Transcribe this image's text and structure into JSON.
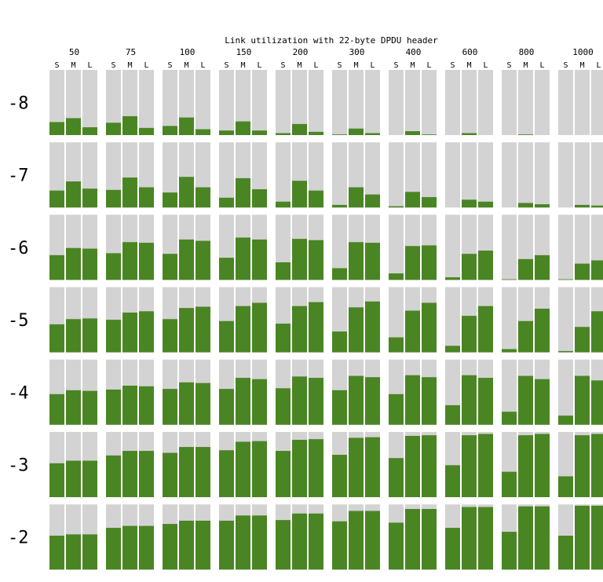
{
  "chart_data": {
    "type": "bar",
    "title": "Link utilization with 22-byte DPDU header",
    "columns": [
      "50",
      "75",
      "100",
      "150",
      "200",
      "300",
      "400",
      "600",
      "800",
      "1000"
    ],
    "sublabels": [
      "S",
      "M",
      "L"
    ],
    "rows": [
      "-8",
      "-7",
      "-6",
      "-5",
      "-4",
      "-3",
      "-2"
    ],
    "ylim": [
      0,
      1
    ],
    "colors": {
      "bar": "#4a8523",
      "background": "#d3d3d3"
    },
    "values": [
      [
        [
          0.2,
          0.26,
          0.12
        ],
        [
          0.19,
          0.29,
          0.11
        ],
        [
          0.14,
          0.27,
          0.09
        ],
        [
          0.07,
          0.21,
          0.07
        ],
        [
          0.03,
          0.17,
          0.05
        ],
        [
          0.01,
          0.1,
          0.03
        ],
        [
          0.0,
          0.06,
          0.01
        ],
        [
          0.0,
          0.03,
          0.0
        ],
        [
          0.0,
          0.01,
          0.0
        ],
        [
          0.0,
          0.0,
          0.0
        ]
      ],
      [
        [
          0.26,
          0.4,
          0.29
        ],
        [
          0.27,
          0.46,
          0.31
        ],
        [
          0.23,
          0.47,
          0.31
        ],
        [
          0.15,
          0.45,
          0.28
        ],
        [
          0.09,
          0.41,
          0.26
        ],
        [
          0.04,
          0.31,
          0.2
        ],
        [
          0.02,
          0.24,
          0.16
        ],
        [
          0.0,
          0.12,
          0.09
        ],
        [
          0.0,
          0.07,
          0.05
        ],
        [
          0.0,
          0.04,
          0.03
        ]
      ],
      [
        [
          0.38,
          0.49,
          0.48
        ],
        [
          0.41,
          0.58,
          0.57
        ],
        [
          0.4,
          0.62,
          0.6
        ],
        [
          0.34,
          0.65,
          0.62
        ],
        [
          0.27,
          0.63,
          0.61
        ],
        [
          0.18,
          0.58,
          0.57
        ],
        [
          0.1,
          0.52,
          0.53
        ],
        [
          0.04,
          0.4,
          0.45
        ],
        [
          0.01,
          0.32,
          0.38
        ],
        [
          0.01,
          0.25,
          0.3
        ]
      ],
      [
        [
          0.43,
          0.51,
          0.52
        ],
        [
          0.5,
          0.61,
          0.63
        ],
        [
          0.51,
          0.68,
          0.7
        ],
        [
          0.48,
          0.71,
          0.76
        ],
        [
          0.44,
          0.71,
          0.77
        ],
        [
          0.32,
          0.69,
          0.78
        ],
        [
          0.23,
          0.64,
          0.76
        ],
        [
          0.1,
          0.56,
          0.71
        ],
        [
          0.05,
          0.48,
          0.67
        ],
        [
          0.02,
          0.39,
          0.63
        ]
      ],
      [
        [
          0.47,
          0.53,
          0.52
        ],
        [
          0.54,
          0.6,
          0.59
        ],
        [
          0.55,
          0.65,
          0.64
        ],
        [
          0.55,
          0.72,
          0.7
        ],
        [
          0.56,
          0.74,
          0.72
        ],
        [
          0.53,
          0.75,
          0.73
        ],
        [
          0.47,
          0.76,
          0.73
        ],
        [
          0.3,
          0.76,
          0.72
        ],
        [
          0.2,
          0.75,
          0.7
        ],
        [
          0.14,
          0.75,
          0.68
        ]
      ],
      [
        [
          0.52,
          0.56,
          0.56
        ],
        [
          0.64,
          0.71,
          0.71
        ],
        [
          0.68,
          0.77,
          0.77
        ],
        [
          0.72,
          0.85,
          0.86
        ],
        [
          0.71,
          0.88,
          0.89
        ],
        [
          0.65,
          0.91,
          0.92
        ],
        [
          0.6,
          0.94,
          0.95
        ],
        [
          0.49,
          0.95,
          0.97
        ],
        [
          0.39,
          0.95,
          0.97
        ],
        [
          0.32,
          0.95,
          0.97
        ]
      ],
      [
        [
          0.52,
          0.54,
          0.54
        ],
        [
          0.64,
          0.67,
          0.67
        ],
        [
          0.7,
          0.75,
          0.75
        ],
        [
          0.75,
          0.83,
          0.83
        ],
        [
          0.76,
          0.86,
          0.86
        ],
        [
          0.74,
          0.9,
          0.9
        ],
        [
          0.72,
          0.93,
          0.93
        ],
        [
          0.64,
          0.96,
          0.96
        ],
        [
          0.58,
          0.97,
          0.97
        ],
        [
          0.52,
          0.98,
          0.98
        ]
      ]
    ]
  }
}
